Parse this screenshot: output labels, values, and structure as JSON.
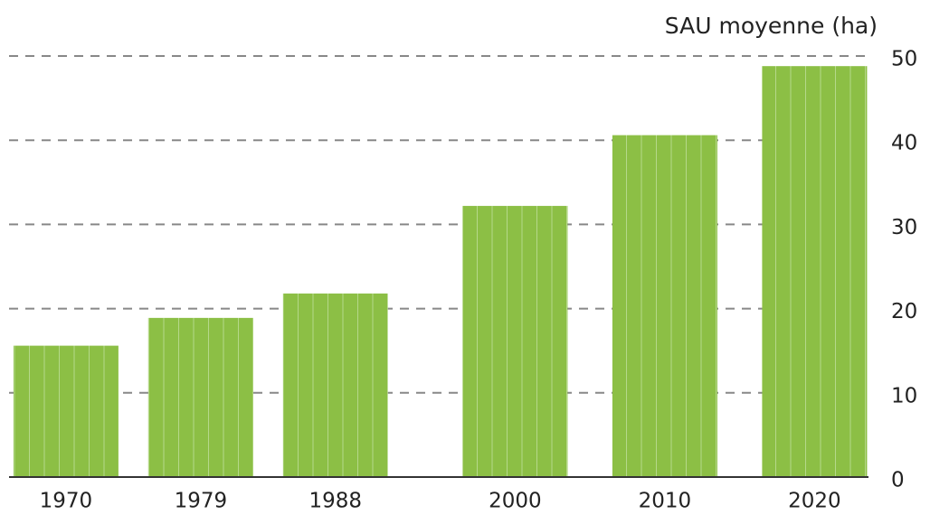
{
  "chart_data": {
    "type": "bar",
    "y_axis_label": "SAU moyenne (ha)",
    "x": [
      1970,
      1979,
      1988,
      2000,
      2010,
      2020
    ],
    "values": [
      15.6,
      18.9,
      21.8,
      32.2,
      40.6,
      48.8
    ],
    "color": "#8cbf45",
    "xlim": [
      1966.2,
      2023.6
    ],
    "ylim": [
      0,
      50
    ],
    "yticks": [
      0,
      10,
      20,
      30,
      40,
      50
    ],
    "grid": true
  }
}
